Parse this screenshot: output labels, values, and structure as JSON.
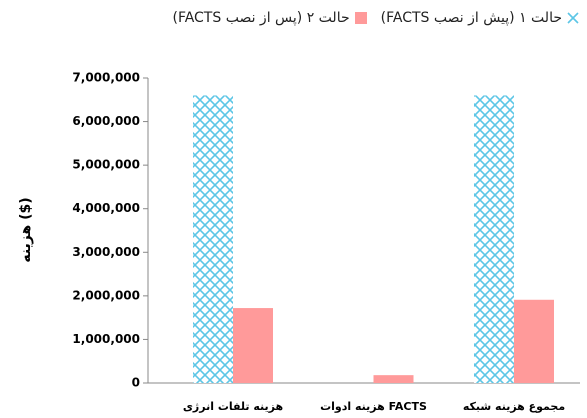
{
  "chart_data": {
    "type": "bar",
    "y_label": "هزینه ($)",
    "categories": [
      "هزینه تلفات انرژی",
      "هزینه ادوات FACTS",
      "مجموع هزینه شبکه"
    ],
    "series": [
      {
        "name": "حالت ۱ (پیش از نصب FACTS)",
        "color": "#5cc6e6",
        "pattern": "crosshatch",
        "values": [
          6600000,
          0,
          6600000
        ]
      },
      {
        "name": "حالت ۲ (پس از نصب FACTS)",
        "color": "#ff9a9a",
        "values": [
          1720000,
          180000,
          1910000
        ]
      }
    ],
    "ylim": [
      0,
      7000000
    ],
    "yticks": [
      0,
      {
        "value": 1000000,
        "label": "1,000,000"
      },
      {
        "value": 2000000,
        "label": "2,000,000"
      },
      {
        "value": 3000000,
        "label": "3,000,000"
      },
      {
        "value": 4000000,
        "label": "4,000,000"
      },
      {
        "value": 5000000,
        "label": "5,000,000"
      },
      {
        "value": 6000000,
        "label": "6,000,000"
      },
      {
        "value": 7000000,
        "label": "7,000,000"
      }
    ],
    "legend": "top",
    "grid": false
  }
}
